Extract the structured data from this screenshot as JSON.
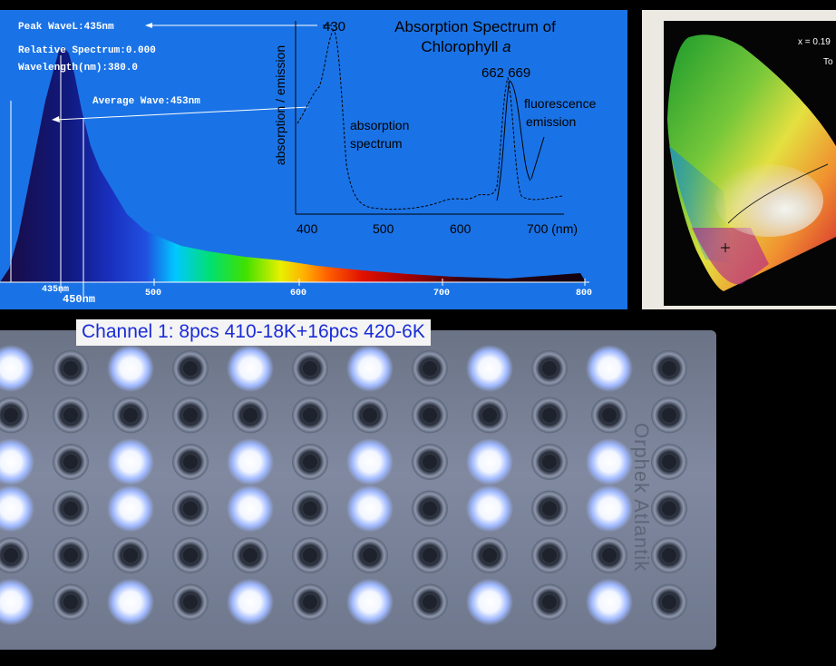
{
  "spectrum": {
    "peak_wave": "Peak WaveL:435nm",
    "relative_spectrum": "Relative Spectrum:0.000",
    "wavelength": "Wavelength(nm):380.0",
    "average_wave": "Average Wave:453nm",
    "marker_435": "435nm",
    "marker_450": "450nm",
    "x_ticks": [
      "500",
      "600",
      "700",
      "800"
    ]
  },
  "chlorophyll": {
    "title_line1": "Absorption Spectrum of",
    "title_line2_prefix": "Chlorophyll ",
    "title_line2_italic": "a",
    "ylabel": "absorption / emission",
    "peak_430": "430",
    "peak_662_669": "662 669",
    "absorption_label_1": "absorption",
    "absorption_label_2": "spectrum",
    "fluorescence_label_1": "fluorescence",
    "fluorescence_label_2": "emission",
    "x_ticks": [
      "400",
      "500",
      "600",
      "700 (nm)"
    ]
  },
  "cie": {
    "readout_x": "x = 0.19",
    "readout_to": "To"
  },
  "led": {
    "channel_label": "Channel 1: 8pcs 410-18K+16pcs 420-6K",
    "brand": "Orphek Atlantik"
  },
  "colors": {
    "spectrum_bg": "#1a73e6",
    "label_text": "#1a2cd8"
  }
}
